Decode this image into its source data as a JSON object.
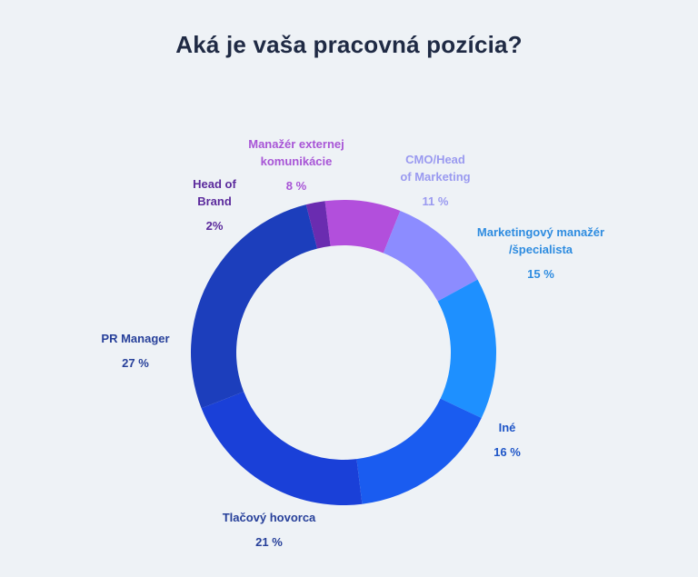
{
  "title": "Aká je vaša pracovná pozícia?",
  "chart_data": {
    "type": "pie",
    "title": "Aká je vaša pracovná pozícia?",
    "slices": [
      {
        "label": "Manažér externej komunikácie",
        "label_lines": [
          "Manažér externej",
          "komunikácie"
        ],
        "value": 8,
        "value_label": "8 %",
        "color": "#b24fdc"
      },
      {
        "label": "CMO/Head of Marketing",
        "label_lines": [
          "CMO/Head",
          "of Marketing"
        ],
        "value": 11,
        "value_label": "11 %",
        "color": "#8c8cff"
      },
      {
        "label": "Marketingový manažér /špecialista",
        "label_lines": [
          "Marketingový manažér",
          "/špecialista"
        ],
        "value": 15,
        "value_label": "15 %",
        "color": "#1e90ff"
      },
      {
        "label": "Iné",
        "label_lines": [
          "Iné"
        ],
        "value": 16,
        "value_label": "16 %",
        "color": "#1a5cf0"
      },
      {
        "label": "Tlačový hovorca",
        "label_lines": [
          "Tlačový hovorca"
        ],
        "value": 21,
        "value_label": "21 %",
        "color": "#1a40d8"
      },
      {
        "label": "PR Manager",
        "label_lines": [
          "PR Manager"
        ],
        "value": 27,
        "value_label": "27 %",
        "color": "#1c3ebc"
      },
      {
        "label": "Head of Brand",
        "label_lines": [
          "Head of",
          "Brand"
        ],
        "value": 2,
        "value_label": "2%",
        "color": "#6a2cb0"
      }
    ],
    "label_colors": [
      "#a855d6",
      "#9a9af0",
      "#2e8ce0",
      "#1f56c8",
      "#27409a",
      "#27409a",
      "#5b2a9c"
    ],
    "legend": "none"
  }
}
